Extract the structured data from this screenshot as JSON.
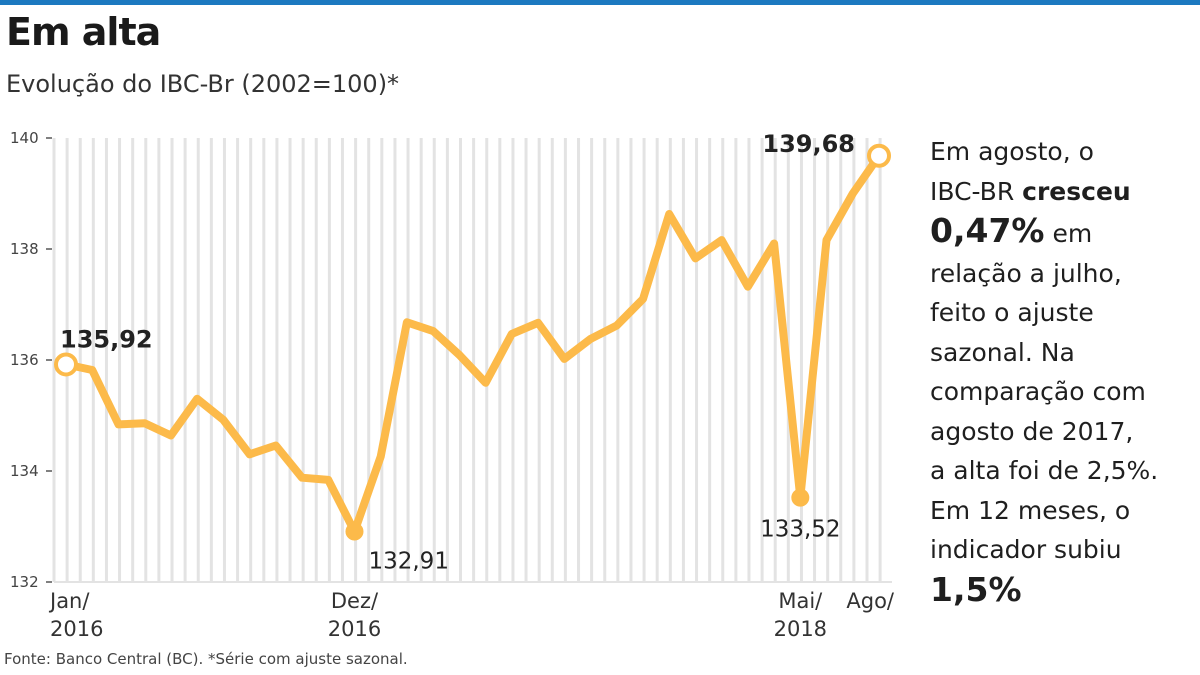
{
  "colors": {
    "line": "#FCBA4A",
    "grid": "#e3e3e3",
    "accent_rule": "#1c79c0",
    "text": "#222222"
  },
  "header": {
    "title": "Em alta",
    "subtitle": "Evolução do IBC-Br (2002=100)*"
  },
  "chart_data": {
    "type": "line",
    "title": "Em alta",
    "subtitle": "Evolução do IBC-Br (2002=100)*",
    "xlabel": "",
    "ylabel": "",
    "ylim": [
      132,
      140
    ],
    "yticks": [
      "132",
      "134",
      "136",
      "138",
      "140"
    ],
    "grid": true,
    "x": [
      "2016-01",
      "2016-02",
      "2016-03",
      "2016-04",
      "2016-05",
      "2016-06",
      "2016-07",
      "2016-08",
      "2016-09",
      "2016-10",
      "2016-11",
      "2016-12",
      "2017-01",
      "2017-02",
      "2017-03",
      "2017-04",
      "2017-05",
      "2017-06",
      "2017-07",
      "2017-08",
      "2017-09",
      "2017-10",
      "2017-11",
      "2017-12",
      "2018-01",
      "2018-02",
      "2018-03",
      "2018-04",
      "2018-05",
      "2018-06",
      "2018-07",
      "2018-08"
    ],
    "x_tick_labels": [
      {
        "x": "2016-01",
        "line1": "Jan/",
        "line2": "2016"
      },
      {
        "x": "2016-12",
        "line1": "Dez/",
        "line2": "2016"
      },
      {
        "x": "2018-05",
        "line1": "Mai/",
        "line2": "2018"
      },
      {
        "x": "2018-08",
        "line1": "Ago/",
        "line2": ""
      }
    ],
    "series": [
      {
        "values": [
          135.92,
          135.82,
          134.84,
          134.86,
          134.64,
          135.3,
          134.92,
          134.3,
          134.46,
          133.88,
          133.84,
          132.91,
          134.26,
          136.68,
          136.52,
          136.09,
          135.59,
          136.47,
          136.67,
          136.02,
          136.38,
          136.62,
          137.1,
          138.63,
          137.83,
          138.16,
          137.32,
          138.1,
          133.52,
          138.16,
          139.0,
          139.68
        ]
      }
    ],
    "annotations": [
      {
        "x": "2016-01",
        "text": "135,92",
        "emphasis": "bold"
      },
      {
        "x": "2016-12",
        "text": "132,91",
        "emphasis": "normal"
      },
      {
        "x": "2018-05",
        "text": "133,52",
        "emphasis": "normal"
      },
      {
        "x": "2018-08",
        "text": "139,68",
        "emphasis": "bold"
      }
    ]
  },
  "annotation": {
    "t1": "Em agosto, o",
    "t2": "IBC-BR ",
    "t2b": "cresceu",
    "t3": "0,47%",
    "t3b": " em",
    "t4": "relação a julho,",
    "t5": "feito o ajuste",
    "t6": "sazonal. Na",
    "t7": "comparação com",
    "t8": "agosto de 2017,",
    "t9": "a alta foi de 2,5%.",
    "t10": "Em 12 meses, o",
    "t11": "indicador subiu",
    "t12": "1,5%"
  },
  "footer": {
    "source": "Fonte: Banco Central (BC). *Série com ajuste sazonal."
  }
}
